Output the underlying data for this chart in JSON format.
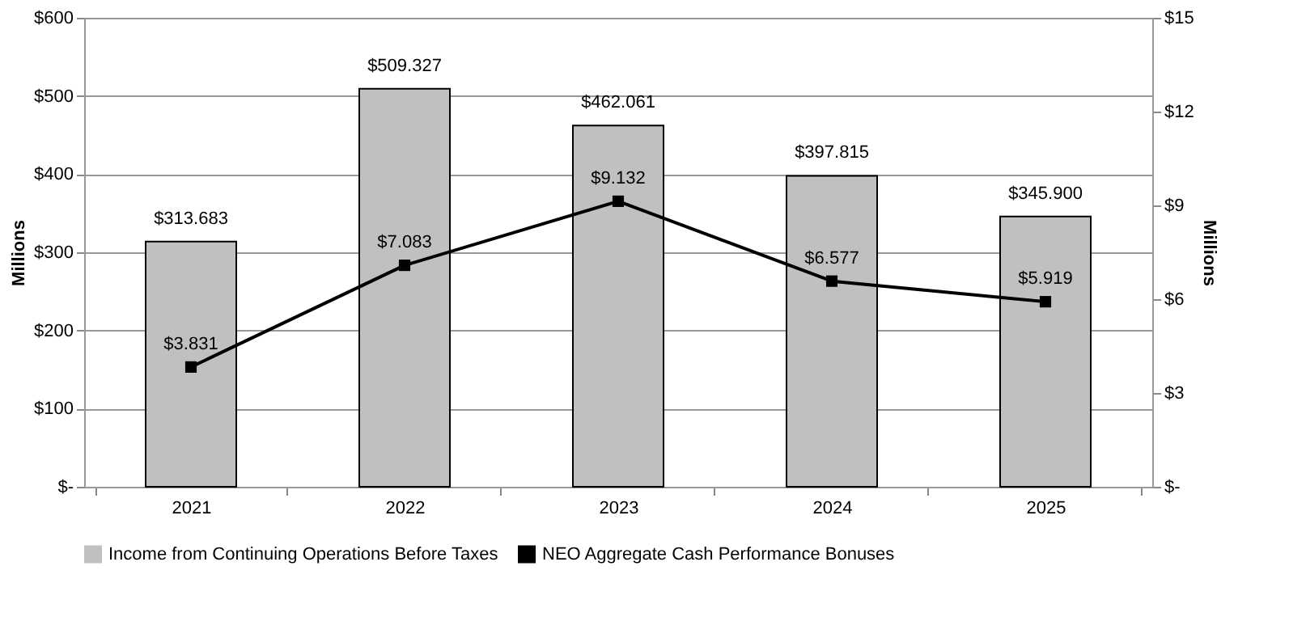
{
  "chart_data": {
    "type": "bar",
    "ylabel": "Millions",
    "y2label": "Millions",
    "categories": [
      "2021",
      "2022",
      "2023",
      "2024",
      "2025"
    ],
    "series": [
      {
        "name": "Income from Continuing Operations Before Taxes",
        "color": "#c0c0c0",
        "values": [
          313.683,
          509.327,
          462.061,
          397.815,
          345.9
        ]
      },
      {
        "name": "NEO Aggregate Cash Performance Bonuses",
        "type": "line",
        "axis": "y2",
        "color": "#000000",
        "marker": "square",
        "values": [
          3.831,
          7.083,
          9.132,
          6.577,
          5.919
        ]
      }
    ],
    "value_labels": [
      [
        "$313.683",
        "$509.327",
        "$462.061",
        "$397.815",
        "$345.900"
      ],
      [
        "$3.831",
        "$7.083",
        "$9.132",
        "$6.577",
        "$5.919"
      ]
    ],
    "ylim": [
      0,
      600
    ],
    "yticks": [
      {
        "value": 0,
        "label": "$-"
      },
      {
        "value": 100,
        "label": "$100"
      },
      {
        "value": 200,
        "label": "$200"
      },
      {
        "value": 300,
        "label": "$300"
      },
      {
        "value": 400,
        "label": "$400"
      },
      {
        "value": 500,
        "label": "$500"
      },
      {
        "value": 600,
        "label": "$600"
      }
    ],
    "y2lim": [
      0,
      15
    ],
    "y2ticks": [
      {
        "value": 0,
        "label": "$-"
      },
      {
        "value": 3,
        "label": "$3"
      },
      {
        "value": 6,
        "label": "$6"
      },
      {
        "value": 9,
        "label": "$9"
      },
      {
        "value": 12,
        "label": "$12"
      },
      {
        "value": 15,
        "label": "$15"
      }
    ],
    "grid": "y",
    "legend": "bottom"
  }
}
